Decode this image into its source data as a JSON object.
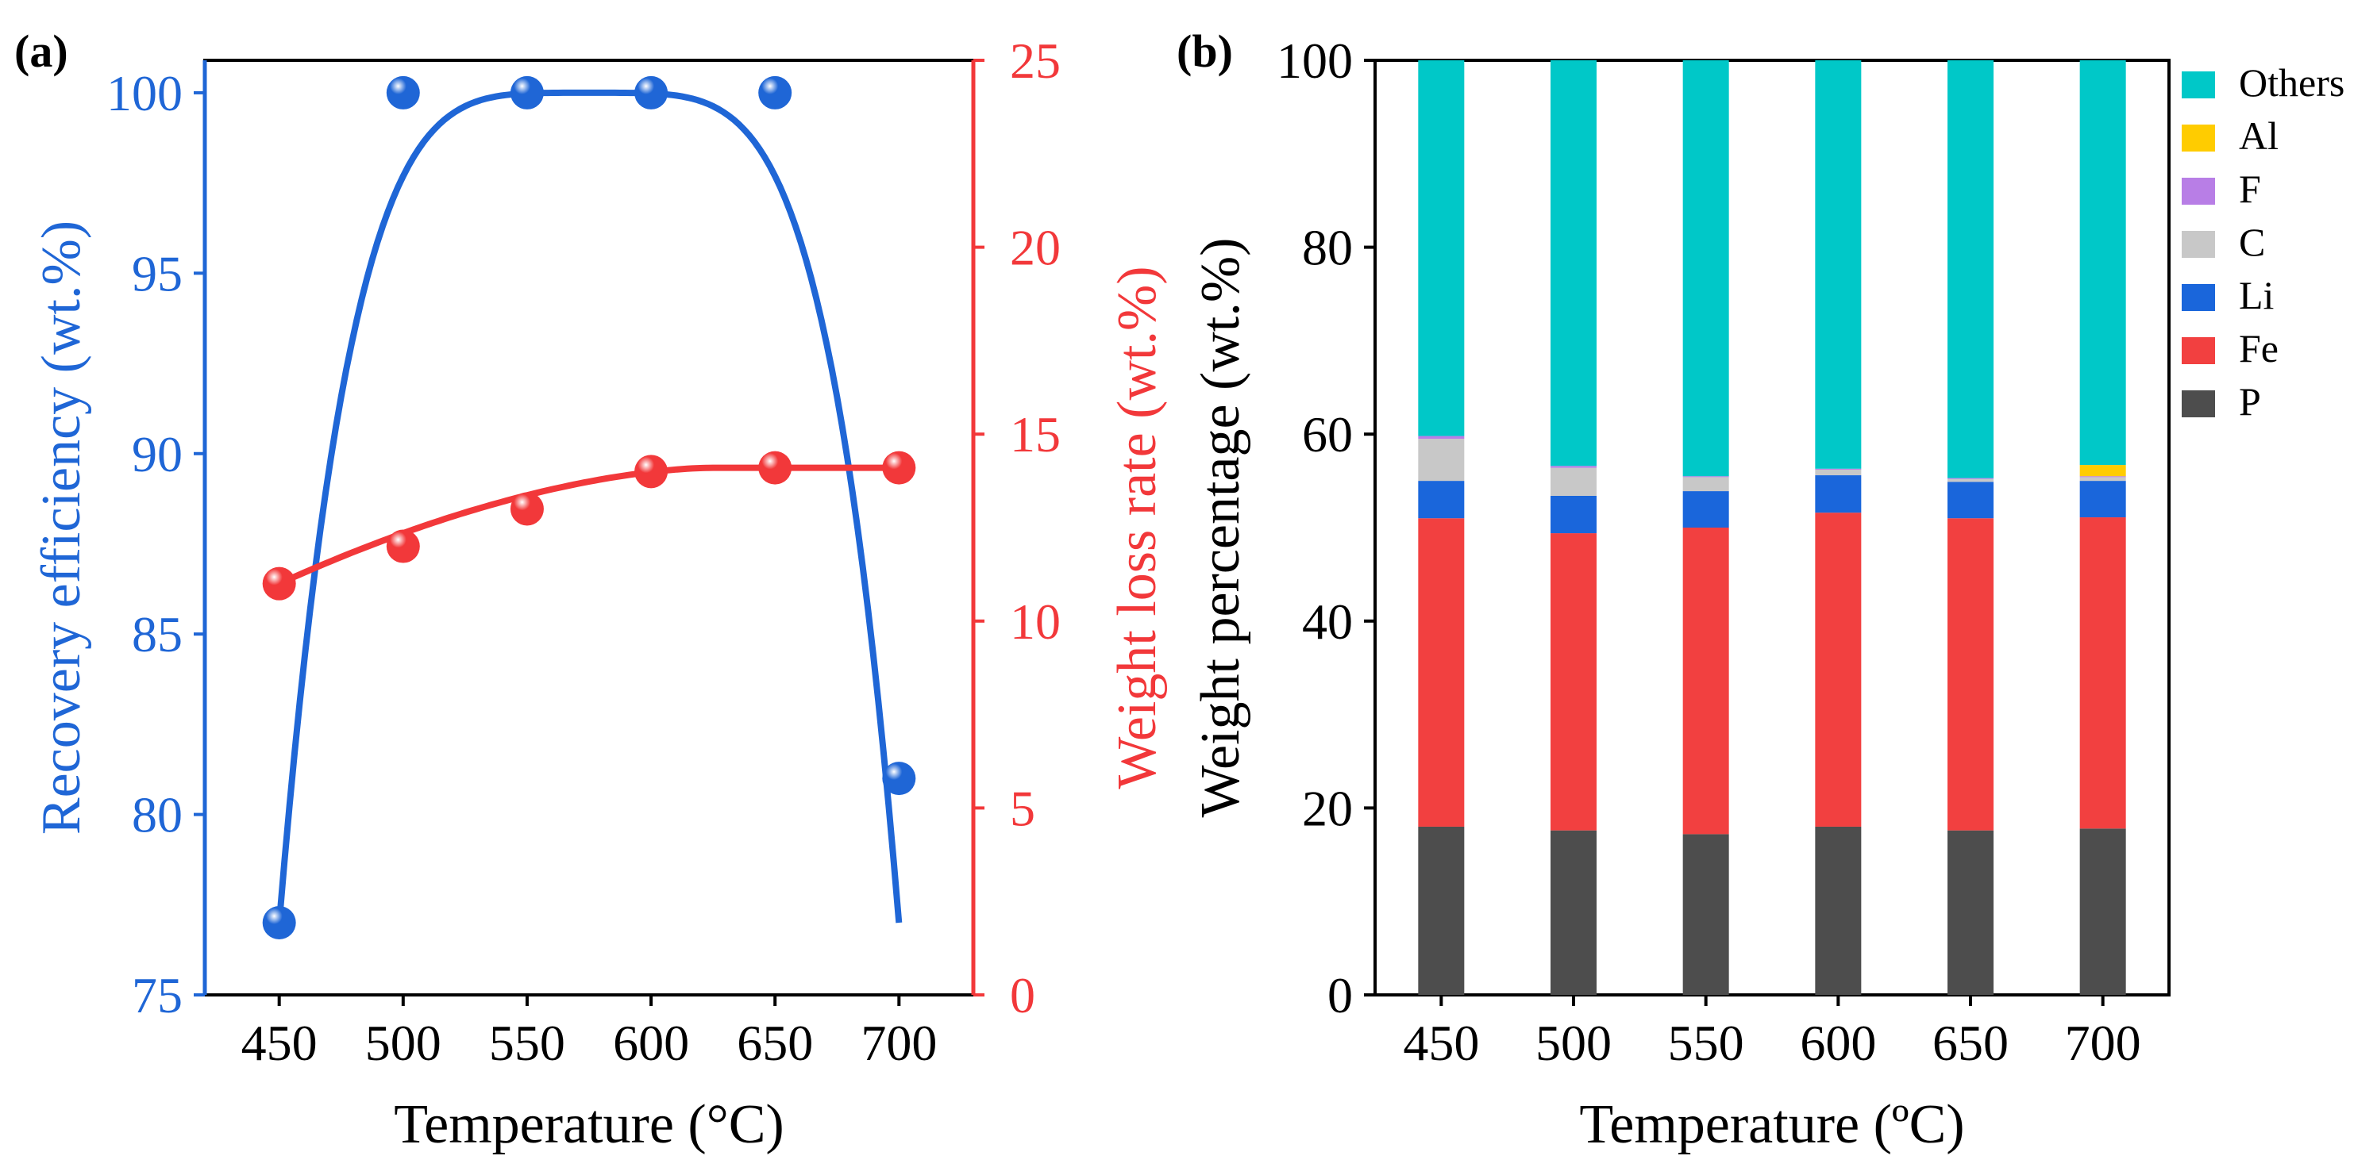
{
  "colors": {
    "recovery": "#1f66d6",
    "weight_loss": "#f2383a",
    "axis": "#000000",
    "stack": {
      "P": "#4d4d4d",
      "Fe": "#f24040",
      "Li": "#1a66db",
      "C": "#c8c8c8",
      "F": "#b87ee6",
      "Al": "#ffcc00",
      "Others": "#00c8c8"
    }
  },
  "panel_a": {
    "label": "(a)",
    "xlabel": "Temperature (°C)",
    "ylabel_left": "Recovery efficiency (wt.%)",
    "ylabel_right": "Weight loss rate (wt.%)"
  },
  "panel_b": {
    "label": "(b)",
    "xlabel": "Temperature (ºC)",
    "ylabel": "Weight percentage (wt.%)"
  },
  "chart_data": [
    {
      "type": "line",
      "panel": "a",
      "xlabel": "Temperature (°C)",
      "x": [
        450,
        500,
        550,
        600,
        650,
        700
      ],
      "xlim": [
        420,
        730
      ],
      "xticks": [
        "450",
        "500",
        "550",
        "600",
        "650",
        "700"
      ],
      "series": [
        {
          "name": "Recovery efficiency (wt.%)",
          "axis": "left",
          "values": [
            77,
            100,
            100,
            100,
            100,
            81
          ]
        },
        {
          "name": "Weight loss rate (wt.%)",
          "axis": "right",
          "values": [
            11.0,
            12.0,
            13.0,
            14.0,
            14.1,
            14.1
          ]
        }
      ],
      "ylim_left": [
        75,
        100.9
      ],
      "yticks_left": [
        "75",
        "80",
        "85",
        "90",
        "95",
        "100"
      ],
      "ylim_right": [
        0,
        25
      ],
      "yticks_right": [
        "0",
        "5",
        "10",
        "15",
        "20",
        "25"
      ],
      "grid": false
    },
    {
      "type": "bar",
      "stacked": true,
      "panel": "b",
      "xlabel": "Temperature (ºC)",
      "ylabel": "Weight percentage (wt.%)",
      "categories": [
        "450",
        "500",
        "550",
        "600",
        "650",
        "700"
      ],
      "ylim": [
        0,
        100
      ],
      "yticks": [
        "0",
        "20",
        "40",
        "60",
        "80",
        "100"
      ],
      "legend_position": "top-right",
      "legend_order": [
        "Others",
        "Al",
        "F",
        "C",
        "Li",
        "Fe",
        "P"
      ],
      "series": [
        {
          "name": "P",
          "values": [
            18.0,
            17.6,
            17.2,
            18.0,
            17.6,
            17.8
          ]
        },
        {
          "name": "Fe",
          "values": [
            33.0,
            31.8,
            32.8,
            33.6,
            33.4,
            33.3
          ]
        },
        {
          "name": "Li",
          "values": [
            4.0,
            4.0,
            3.9,
            4.0,
            3.9,
            3.9
          ]
        },
        {
          "name": "C",
          "values": [
            4.5,
            3.0,
            1.5,
            0.6,
            0.3,
            0.4
          ]
        },
        {
          "name": "F",
          "values": [
            0.3,
            0.2,
            0.1,
            0.1,
            0.1,
            0.1
          ]
        },
        {
          "name": "Al",
          "values": [
            0.0,
            0.0,
            0.0,
            0.0,
            0.0,
            1.2
          ]
        },
        {
          "name": "Others",
          "values": [
            40.2,
            43.4,
            44.5,
            43.7,
            44.7,
            43.3
          ]
        }
      ],
      "grid": false
    }
  ]
}
